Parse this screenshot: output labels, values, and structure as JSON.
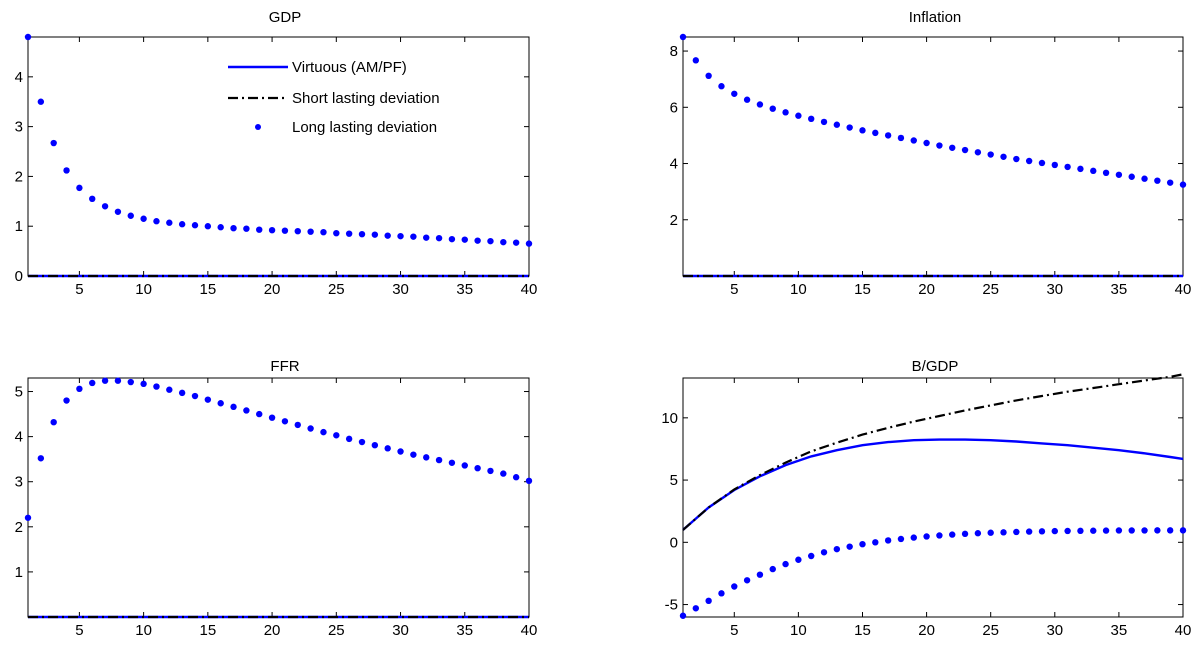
{
  "colors": {
    "virtuous": "#0000ff",
    "short": "#000000",
    "long": "#0000ff"
  },
  "legend": {
    "entries": [
      {
        "label": "Virtuous (AM/PF)",
        "style": "solid",
        "color": "#0000ff"
      },
      {
        "label": "Short lasting deviation",
        "style": "dashdot",
        "color": "#000000"
      },
      {
        "label": "Long lasting deviation",
        "style": "dots",
        "color": "#0000ff"
      }
    ]
  },
  "chart_data": [
    {
      "type": "line",
      "title": "GDP",
      "xlim": [
        1,
        40
      ],
      "ylim": [
        0,
        4.8
      ],
      "xticks": [
        5,
        10,
        15,
        20,
        25,
        30,
        35,
        40
      ],
      "yticks": [
        0,
        1,
        2,
        3,
        4
      ],
      "series": [
        {
          "name": "Virtuous (AM/PF)",
          "style": "solid",
          "x": [
            1,
            40
          ],
          "y": [
            0,
            0
          ]
        },
        {
          "name": "Short lasting deviation",
          "style": "dashdot",
          "x": [
            1,
            40
          ],
          "y": [
            0,
            0
          ]
        },
        {
          "name": "Long lasting deviation",
          "style": "dots",
          "x": [
            1,
            2,
            3,
            4,
            5,
            6,
            7,
            8,
            9,
            10,
            11,
            12,
            13,
            14,
            15,
            16,
            17,
            18,
            19,
            20,
            21,
            22,
            23,
            24,
            25,
            26,
            27,
            28,
            29,
            30,
            31,
            32,
            33,
            34,
            35,
            36,
            37,
            38,
            39,
            40
          ],
          "y": [
            4.8,
            3.5,
            2.67,
            2.12,
            1.77,
            1.55,
            1.4,
            1.29,
            1.21,
            1.15,
            1.1,
            1.07,
            1.04,
            1.02,
            1.0,
            0.98,
            0.96,
            0.95,
            0.93,
            0.92,
            0.91,
            0.9,
            0.89,
            0.88,
            0.86,
            0.85,
            0.84,
            0.83,
            0.81,
            0.8,
            0.79,
            0.77,
            0.76,
            0.74,
            0.73,
            0.71,
            0.7,
            0.68,
            0.67,
            0.65
          ]
        }
      ]
    },
    {
      "type": "line",
      "title": "Inflation",
      "xlim": [
        1,
        40
      ],
      "ylim": [
        0,
        8.5
      ],
      "xticks": [
        5,
        10,
        15,
        20,
        25,
        30,
        35,
        40
      ],
      "yticks": [
        2,
        4,
        6,
        8
      ],
      "series": [
        {
          "name": "Virtuous (AM/PF)",
          "style": "solid",
          "x": [
            1,
            40
          ],
          "y": [
            0,
            0
          ]
        },
        {
          "name": "Short lasting deviation",
          "style": "dashdot",
          "x": [
            1,
            40
          ],
          "y": [
            0,
            0
          ]
        },
        {
          "name": "Long lasting deviation",
          "style": "dots",
          "x": [
            1,
            2,
            3,
            4,
            5,
            6,
            7,
            8,
            9,
            10,
            11,
            12,
            13,
            14,
            15,
            16,
            17,
            18,
            19,
            20,
            21,
            22,
            23,
            24,
            25,
            26,
            27,
            28,
            29,
            30,
            31,
            32,
            33,
            34,
            35,
            36,
            37,
            38,
            39,
            40
          ],
          "y": [
            8.5,
            7.67,
            7.12,
            6.75,
            6.48,
            6.27,
            6.1,
            5.95,
            5.82,
            5.7,
            5.59,
            5.48,
            5.38,
            5.28,
            5.18,
            5.09,
            5.0,
            4.91,
            4.82,
            4.73,
            4.64,
            4.56,
            4.48,
            4.4,
            4.32,
            4.24,
            4.16,
            4.09,
            4.02,
            3.95,
            3.88,
            3.81,
            3.74,
            3.67,
            3.6,
            3.53,
            3.46,
            3.39,
            3.32,
            3.25
          ]
        }
      ]
    },
    {
      "type": "line",
      "title": "FFR",
      "xlim": [
        1,
        40
      ],
      "ylim": [
        0,
        5.3
      ],
      "xticks": [
        5,
        10,
        15,
        20,
        25,
        30,
        35,
        40
      ],
      "yticks": [
        1,
        2,
        3,
        4,
        5
      ],
      "series": [
        {
          "name": "Virtuous (AM/PF)",
          "style": "solid",
          "x": [
            1,
            40
          ],
          "y": [
            0,
            0
          ]
        },
        {
          "name": "Short lasting deviation",
          "style": "dashdot",
          "x": [
            1,
            40
          ],
          "y": [
            0,
            0
          ]
        },
        {
          "name": "Long lasting deviation",
          "style": "dots",
          "x": [
            1,
            2,
            3,
            4,
            5,
            6,
            7,
            8,
            9,
            10,
            11,
            12,
            13,
            14,
            15,
            16,
            17,
            18,
            19,
            20,
            21,
            22,
            23,
            24,
            25,
            26,
            27,
            28,
            29,
            30,
            31,
            32,
            33,
            34,
            35,
            36,
            37,
            38,
            39,
            40
          ],
          "y": [
            2.2,
            3.52,
            4.32,
            4.8,
            5.06,
            5.19,
            5.24,
            5.24,
            5.21,
            5.17,
            5.11,
            5.04,
            4.97,
            4.9,
            4.82,
            4.74,
            4.66,
            4.58,
            4.5,
            4.42,
            4.34,
            4.26,
            4.18,
            4.1,
            4.03,
            3.95,
            3.88,
            3.81,
            3.74,
            3.67,
            3.6,
            3.54,
            3.48,
            3.42,
            3.36,
            3.3,
            3.24,
            3.18,
            3.1,
            3.02
          ]
        }
      ]
    },
    {
      "type": "line",
      "title": "B/GDP",
      "xlim": [
        1,
        40
      ],
      "ylim": [
        -6,
        13.2
      ],
      "xticks": [
        5,
        10,
        15,
        20,
        25,
        30,
        35,
        40
      ],
      "yticks": [
        -5,
        0,
        5,
        10
      ],
      "series": [
        {
          "name": "Virtuous (AM/PF)",
          "style": "solid",
          "x": [
            1,
            3,
            5,
            7,
            9,
            11,
            13,
            15,
            17,
            19,
            21,
            23,
            25,
            27,
            29,
            31,
            33,
            35,
            37,
            39,
            40
          ],
          "y": [
            1.0,
            2.8,
            4.2,
            5.3,
            6.2,
            6.9,
            7.4,
            7.8,
            8.05,
            8.2,
            8.25,
            8.25,
            8.2,
            8.1,
            7.95,
            7.8,
            7.6,
            7.4,
            7.15,
            6.85,
            6.7
          ]
        },
        {
          "name": "Short lasting deviation",
          "style": "dashdot",
          "x": [
            1,
            3,
            5,
            7,
            9,
            11,
            13,
            15,
            17,
            19,
            21,
            23,
            25,
            27,
            29,
            31,
            33,
            35,
            37,
            39,
            40
          ],
          "y": [
            1.0,
            2.8,
            4.25,
            5.4,
            6.4,
            7.3,
            8.0,
            8.65,
            9.2,
            9.7,
            10.15,
            10.6,
            11.0,
            11.4,
            11.75,
            12.1,
            12.4,
            12.7,
            13.0,
            13.3,
            13.5
          ]
        },
        {
          "name": "Long lasting deviation",
          "style": "dots",
          "x": [
            1,
            2,
            3,
            4,
            5,
            6,
            7,
            8,
            9,
            10,
            11,
            12,
            13,
            14,
            15,
            16,
            17,
            18,
            19,
            20,
            21,
            22,
            23,
            24,
            25,
            26,
            27,
            28,
            29,
            30,
            31,
            32,
            33,
            34,
            35,
            36,
            37,
            38,
            39,
            40
          ],
          "y": [
            -5.9,
            -5.3,
            -4.7,
            -4.1,
            -3.55,
            -3.05,
            -2.6,
            -2.15,
            -1.75,
            -1.4,
            -1.1,
            -0.8,
            -0.55,
            -0.35,
            -0.15,
            0.0,
            0.15,
            0.27,
            0.38,
            0.47,
            0.55,
            0.62,
            0.68,
            0.73,
            0.77,
            0.8,
            0.83,
            0.86,
            0.88,
            0.9,
            0.91,
            0.92,
            0.93,
            0.94,
            0.95,
            0.95,
            0.95,
            0.96,
            0.96,
            0.96
          ]
        }
      ]
    }
  ]
}
